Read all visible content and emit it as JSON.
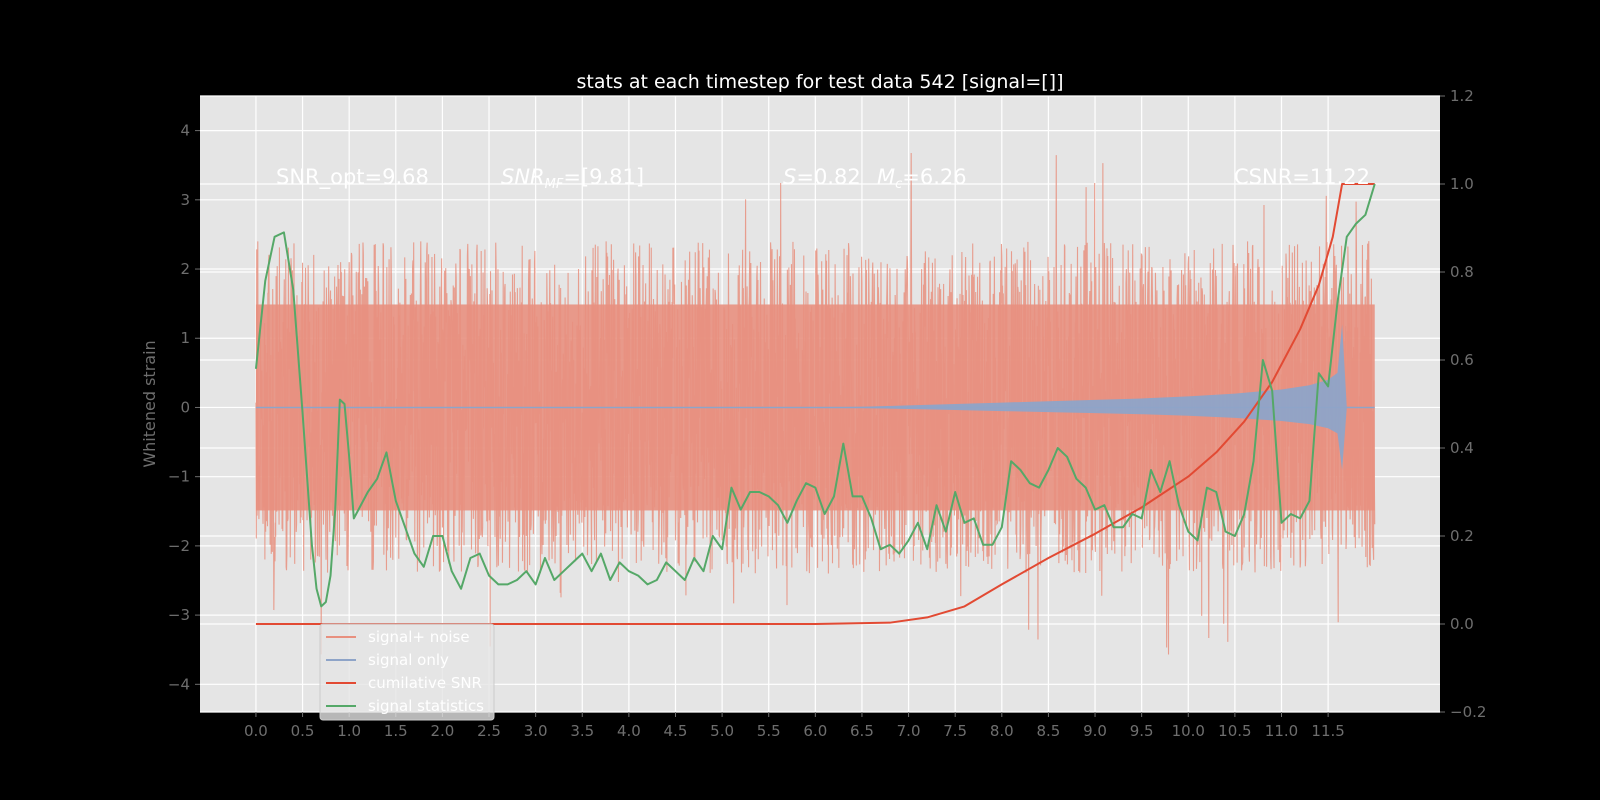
{
  "chart_data": {
    "type": "line",
    "title": "stats at each timestep for test data 542 [signal=[]]",
    "ylabel": "Whitened strain",
    "xlabel": "",
    "x_ticks": [
      "0.0",
      "0.5",
      "1.0",
      "1.5",
      "2.0",
      "2.5",
      "3.0",
      "3.5",
      "4.0",
      "4.5",
      "5.0",
      "5.5",
      "6.0",
      "6.5",
      "7.0",
      "7.5",
      "8.0",
      "8.5",
      "9.0",
      "9.5",
      "10.0",
      "10.5",
      "11.0",
      "11.5"
    ],
    "y_left_ticks": [
      "4",
      "3",
      "2",
      "1",
      "0",
      "−1",
      "−2",
      "−3",
      "−4"
    ],
    "y_right_ticks": [
      "1.2",
      "1.0",
      "0.8",
      "0.6",
      "0.4",
      "0.2",
      "0.0",
      "−0.2"
    ],
    "xlim": [
      -0.6,
      12.7
    ],
    "ylim_left": [
      -4.4,
      4.5
    ],
    "ylim_right": [
      -0.2,
      1.2
    ],
    "grid": true,
    "legend": {
      "placement": "lower-left",
      "entries": [
        {
          "label": "signal+ noise",
          "color": "#e8907f"
        },
        {
          "label": "signal only",
          "color": "#8ea4c8"
        },
        {
          "label": "cumilative SNR",
          "color": "#e24a33"
        },
        {
          "label": "signal statistics",
          "color": "#55a868"
        }
      ]
    },
    "annotations": {
      "snr_opt": "SNR_opt=9.68",
      "snr_mf_main": "SNR",
      "snr_mf_sub": "MF",
      "snr_mf_value": "=[9.81]",
      "s_label": "S",
      "s_value": "=0.82",
      "mc_main": "M",
      "mc_sub": "c",
      "mc_value": "=6.26",
      "csnr": "CSNR=11.22"
    },
    "series": [
      {
        "name": "signal+ noise",
        "axis": "left",
        "color": "#e8907f",
        "noise_envelope_approx": {
          "x_range": [
            0.0,
            12.0
          ],
          "typical_max": 2.4,
          "typical_min": -2.4,
          "peak_max": 4.1,
          "peak_min": -4.0
        }
      },
      {
        "name": "signal only",
        "axis": "left",
        "color": "#8ea4c8",
        "envelope": {
          "x": [
            0.0,
            6.0,
            6.5,
            7.0,
            7.5,
            8.0,
            8.5,
            9.0,
            9.5,
            10.0,
            10.5,
            11.0,
            11.3,
            11.5,
            11.6,
            11.65,
            11.7,
            12.0
          ],
          "amp": [
            0.0,
            0.0,
            0.01,
            0.03,
            0.05,
            0.07,
            0.09,
            0.11,
            0.13,
            0.16,
            0.2,
            0.26,
            0.32,
            0.4,
            0.5,
            1.2,
            0.01,
            0.0
          ]
        }
      },
      {
        "name": "cumilative SNR",
        "axis": "right",
        "color": "#e24a33",
        "x": [
          0.0,
          6.0,
          6.8,
          7.2,
          7.6,
          8.0,
          8.5,
          9.0,
          9.5,
          10.0,
          10.3,
          10.6,
          10.9,
          11.2,
          11.4,
          11.55,
          11.65,
          12.0
        ],
        "y": [
          0.0,
          0.0,
          0.003,
          0.015,
          0.04,
          0.09,
          0.15,
          0.205,
          0.265,
          0.335,
          0.39,
          0.46,
          0.55,
          0.67,
          0.77,
          0.88,
          1.0,
          1.0
        ]
      },
      {
        "name": "signal statistics",
        "axis": "right",
        "color": "#55a868",
        "x": [
          0.0,
          0.1,
          0.2,
          0.3,
          0.4,
          0.5,
          0.6,
          0.65,
          0.7,
          0.75,
          0.8,
          0.85,
          0.9,
          0.95,
          1.0,
          1.05,
          1.1,
          1.2,
          1.3,
          1.4,
          1.5,
          1.6,
          1.7,
          1.8,
          1.9,
          2.0,
          2.1,
          2.2,
          2.3,
          2.4,
          2.5,
          2.6,
          2.7,
          2.8,
          2.9,
          3.0,
          3.1,
          3.2,
          3.3,
          3.4,
          3.5,
          3.6,
          3.7,
          3.8,
          3.9,
          4.0,
          4.1,
          4.2,
          4.3,
          4.4,
          4.5,
          4.6,
          4.7,
          4.8,
          4.9,
          5.0,
          5.1,
          5.2,
          5.3,
          5.4,
          5.5,
          5.6,
          5.7,
          5.8,
          5.9,
          6.0,
          6.1,
          6.2,
          6.3,
          6.4,
          6.5,
          6.6,
          6.7,
          6.8,
          6.9,
          7.0,
          7.1,
          7.2,
          7.3,
          7.4,
          7.5,
          7.6,
          7.7,
          7.8,
          7.9,
          8.0,
          8.1,
          8.2,
          8.3,
          8.4,
          8.5,
          8.6,
          8.7,
          8.8,
          8.9,
          9.0,
          9.1,
          9.2,
          9.3,
          9.4,
          9.5,
          9.6,
          9.7,
          9.8,
          9.9,
          10.0,
          10.1,
          10.2,
          10.3,
          10.4,
          10.5,
          10.6,
          10.7,
          10.8,
          10.9,
          11.0,
          11.1,
          11.2,
          11.3,
          11.4,
          11.5,
          11.6,
          11.7,
          11.8,
          11.9,
          12.0
        ],
        "y": [
          0.58,
          0.78,
          0.88,
          0.89,
          0.76,
          0.48,
          0.18,
          0.08,
          0.04,
          0.05,
          0.11,
          0.26,
          0.51,
          0.5,
          0.38,
          0.24,
          0.26,
          0.3,
          0.33,
          0.39,
          0.28,
          0.22,
          0.16,
          0.13,
          0.2,
          0.2,
          0.12,
          0.08,
          0.15,
          0.16,
          0.11,
          0.09,
          0.09,
          0.1,
          0.12,
          0.09,
          0.15,
          0.1,
          0.12,
          0.14,
          0.16,
          0.12,
          0.16,
          0.1,
          0.14,
          0.12,
          0.11,
          0.09,
          0.1,
          0.14,
          0.12,
          0.1,
          0.15,
          0.12,
          0.2,
          0.17,
          0.31,
          0.26,
          0.3,
          0.3,
          0.29,
          0.27,
          0.23,
          0.28,
          0.32,
          0.31,
          0.25,
          0.29,
          0.41,
          0.29,
          0.29,
          0.24,
          0.17,
          0.18,
          0.16,
          0.19,
          0.23,
          0.17,
          0.27,
          0.21,
          0.3,
          0.23,
          0.24,
          0.18,
          0.18,
          0.22,
          0.37,
          0.35,
          0.32,
          0.31,
          0.35,
          0.4,
          0.38,
          0.33,
          0.31,
          0.26,
          0.27,
          0.22,
          0.22,
          0.25,
          0.24,
          0.35,
          0.3,
          0.37,
          0.27,
          0.21,
          0.19,
          0.31,
          0.3,
          0.21,
          0.2,
          0.25,
          0.37,
          0.6,
          0.53,
          0.23,
          0.25,
          0.24,
          0.28,
          0.57,
          0.54,
          0.73,
          0.88,
          0.91,
          0.93,
          1.0
        ]
      }
    ]
  }
}
